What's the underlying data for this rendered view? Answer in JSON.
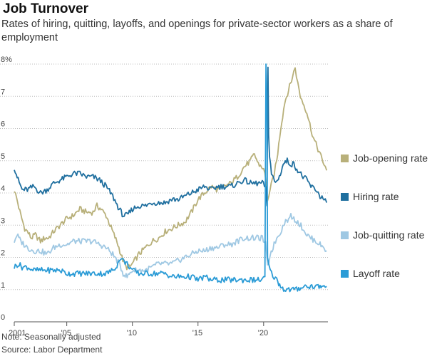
{
  "title": "Job Turnover",
  "subtitle": "Rates of hiring, quitting, layoffs, and openings for private-sector workers as a share of employment",
  "note": "Note: Seasonally adjusted",
  "source": "Source: Labor Department",
  "chart_data": {
    "type": "line",
    "title": "Job Turnover",
    "xlabel": "",
    "ylabel": "",
    "unit": "%",
    "xlim": [
      2001,
      2024.9
    ],
    "ylim": [
      0,
      8
    ],
    "y_ticks": [
      0,
      1,
      2,
      3,
      4,
      5,
      6,
      7,
      8
    ],
    "y_tick_labels": [
      "0",
      "1",
      "2",
      "3",
      "4",
      "5",
      "6",
      "7",
      "8%"
    ],
    "x_ticks": [
      2001,
      2005,
      2010,
      2015,
      2020
    ],
    "x_tick_labels": [
      "2001",
      "'05",
      "'10",
      "'15",
      "'20"
    ],
    "grid": "horizontal dotted",
    "legend_position": "right, next to line ends",
    "series": [
      {
        "name": "Job-opening rate",
        "color": "#b8b07a",
        "points": [
          [
            2001.0,
            4.1
          ],
          [
            2001.2,
            3.8
          ],
          [
            2001.5,
            3.3
          ],
          [
            2001.8,
            2.9
          ],
          [
            2002.0,
            2.8
          ],
          [
            2002.3,
            2.6
          ],
          [
            2002.6,
            2.7
          ],
          [
            2003.0,
            2.5
          ],
          [
            2003.3,
            2.6
          ],
          [
            2003.6,
            2.6
          ],
          [
            2004.0,
            2.8
          ],
          [
            2004.5,
            3.0
          ],
          [
            2005.0,
            3.2
          ],
          [
            2005.5,
            3.3
          ],
          [
            2006.0,
            3.5
          ],
          [
            2006.5,
            3.4
          ],
          [
            2007.0,
            3.4
          ],
          [
            2007.3,
            3.6
          ],
          [
            2007.6,
            3.5
          ],
          [
            2008.0,
            3.3
          ],
          [
            2008.3,
            3.0
          ],
          [
            2008.6,
            2.7
          ],
          [
            2008.9,
            2.4
          ],
          [
            2009.2,
            2.0
          ],
          [
            2009.5,
            1.7
          ],
          [
            2009.8,
            1.7
          ],
          [
            2010.0,
            1.8
          ],
          [
            2010.5,
            2.1
          ],
          [
            2011.0,
            2.3
          ],
          [
            2011.5,
            2.5
          ],
          [
            2012.0,
            2.6
          ],
          [
            2012.5,
            2.8
          ],
          [
            2013.0,
            2.9
          ],
          [
            2013.5,
            3.0
          ],
          [
            2014.0,
            3.1
          ],
          [
            2014.5,
            3.4
          ],
          [
            2015.0,
            3.8
          ],
          [
            2015.5,
            4.0
          ],
          [
            2016.0,
            4.2
          ],
          [
            2016.5,
            4.1
          ],
          [
            2017.0,
            4.2
          ],
          [
            2017.5,
            4.3
          ],
          [
            2018.0,
            4.5
          ],
          [
            2018.5,
            4.8
          ],
          [
            2019.0,
            5.0
          ],
          [
            2019.3,
            5.2
          ],
          [
            2019.6,
            4.9
          ],
          [
            2019.9,
            4.8
          ],
          [
            2020.1,
            4.6
          ],
          [
            2020.3,
            3.8
          ],
          [
            2020.5,
            4.1
          ],
          [
            2020.8,
            4.6
          ],
          [
            2021.0,
            5.0
          ],
          [
            2021.3,
            6.0
          ],
          [
            2021.6,
            6.8
          ],
          [
            2021.9,
            7.2
          ],
          [
            2022.2,
            7.6
          ],
          [
            2022.4,
            7.9
          ],
          [
            2022.6,
            7.4
          ],
          [
            2022.8,
            7.0
          ],
          [
            2023.0,
            6.8
          ],
          [
            2023.3,
            6.5
          ],
          [
            2023.6,
            6.0
          ],
          [
            2023.8,
            5.7
          ],
          [
            2024.0,
            5.5
          ],
          [
            2024.3,
            5.2
          ],
          [
            2024.6,
            4.9
          ],
          [
            2024.8,
            4.7
          ]
        ]
      },
      {
        "name": "Hiring rate",
        "color": "#1f6f9f",
        "points": [
          [
            2001.0,
            4.8
          ],
          [
            2001.3,
            4.4
          ],
          [
            2001.6,
            4.1
          ],
          [
            2002.0,
            4.1
          ],
          [
            2002.5,
            4.2
          ],
          [
            2003.0,
            4.0
          ],
          [
            2003.5,
            4.1
          ],
          [
            2004.0,
            4.3
          ],
          [
            2004.5,
            4.4
          ],
          [
            2005.0,
            4.5
          ],
          [
            2005.5,
            4.6
          ],
          [
            2006.0,
            4.6
          ],
          [
            2006.5,
            4.5
          ],
          [
            2007.0,
            4.5
          ],
          [
            2007.5,
            4.4
          ],
          [
            2008.0,
            4.2
          ],
          [
            2008.5,
            3.9
          ],
          [
            2009.0,
            3.5
          ],
          [
            2009.3,
            3.3
          ],
          [
            2009.6,
            3.3
          ],
          [
            2010.0,
            3.5
          ],
          [
            2010.5,
            3.6
          ],
          [
            2011.0,
            3.6
          ],
          [
            2011.5,
            3.7
          ],
          [
            2012.0,
            3.7
          ],
          [
            2012.5,
            3.7
          ],
          [
            2013.0,
            3.8
          ],
          [
            2013.5,
            3.8
          ],
          [
            2014.0,
            3.9
          ],
          [
            2014.5,
            4.0
          ],
          [
            2015.0,
            4.1
          ],
          [
            2015.5,
            4.2
          ],
          [
            2016.0,
            4.1
          ],
          [
            2016.5,
            4.2
          ],
          [
            2017.0,
            4.2
          ],
          [
            2017.5,
            4.2
          ],
          [
            2018.0,
            4.3
          ],
          [
            2018.5,
            4.4
          ],
          [
            2019.0,
            4.3
          ],
          [
            2019.5,
            4.3
          ],
          [
            2019.9,
            4.3
          ],
          [
            2020.15,
            4.2
          ],
          [
            2020.25,
            3.6
          ],
          [
            2020.33,
            7.9
          ],
          [
            2020.38,
            5.8
          ],
          [
            2020.45,
            5.2
          ],
          [
            2020.6,
            4.6
          ],
          [
            2020.9,
            4.3
          ],
          [
            2021.2,
            4.5
          ],
          [
            2021.5,
            4.9
          ],
          [
            2021.8,
            5.0
          ],
          [
            2022.0,
            4.9
          ],
          [
            2022.3,
            4.9
          ],
          [
            2022.6,
            4.7
          ],
          [
            2023.0,
            4.5
          ],
          [
            2023.3,
            4.4
          ],
          [
            2023.6,
            4.2
          ],
          [
            2024.0,
            4.1
          ],
          [
            2024.3,
            3.9
          ],
          [
            2024.6,
            3.8
          ],
          [
            2024.8,
            3.7
          ]
        ]
      },
      {
        "name": "Job-quitting rate",
        "color": "#9fc8e3",
        "points": [
          [
            2001.0,
            2.5
          ],
          [
            2001.2,
            2.7
          ],
          [
            2001.5,
            2.5
          ],
          [
            2002.0,
            2.3
          ],
          [
            2002.5,
            2.2
          ],
          [
            2003.0,
            2.2
          ],
          [
            2003.5,
            2.1
          ],
          [
            2004.0,
            2.3
          ],
          [
            2004.5,
            2.4
          ],
          [
            2005.0,
            2.4
          ],
          [
            2005.5,
            2.5
          ],
          [
            2006.0,
            2.5
          ],
          [
            2006.5,
            2.5
          ],
          [
            2007.0,
            2.5
          ],
          [
            2007.5,
            2.4
          ],
          [
            2008.0,
            2.3
          ],
          [
            2008.5,
            2.1
          ],
          [
            2009.0,
            1.8
          ],
          [
            2009.3,
            1.5
          ],
          [
            2009.6,
            1.4
          ],
          [
            2010.0,
            1.6
          ],
          [
            2010.5,
            1.6
          ],
          [
            2011.0,
            1.6
          ],
          [
            2011.5,
            1.7
          ],
          [
            2012.0,
            1.8
          ],
          [
            2012.5,
            1.8
          ],
          [
            2013.0,
            1.8
          ],
          [
            2013.5,
            1.9
          ],
          [
            2014.0,
            2.0
          ],
          [
            2014.5,
            2.1
          ],
          [
            2015.0,
            2.2
          ],
          [
            2015.5,
            2.2
          ],
          [
            2016.0,
            2.3
          ],
          [
            2016.5,
            2.3
          ],
          [
            2017.0,
            2.4
          ],
          [
            2017.5,
            2.4
          ],
          [
            2018.0,
            2.5
          ],
          [
            2018.5,
            2.6
          ],
          [
            2019.0,
            2.6
          ],
          [
            2019.5,
            2.6
          ],
          [
            2019.9,
            2.6
          ],
          [
            2020.15,
            2.4
          ],
          [
            2020.3,
            1.7
          ],
          [
            2020.5,
            2.1
          ],
          [
            2020.8,
            2.4
          ],
          [
            2021.0,
            2.6
          ],
          [
            2021.3,
            2.8
          ],
          [
            2021.6,
            3.1
          ],
          [
            2021.9,
            3.2
          ],
          [
            2022.0,
            3.3
          ],
          [
            2022.3,
            3.2
          ],
          [
            2022.6,
            3.1
          ],
          [
            2023.0,
            2.9
          ],
          [
            2023.3,
            2.7
          ],
          [
            2023.6,
            2.6
          ],
          [
            2024.0,
            2.5
          ],
          [
            2024.3,
            2.4
          ],
          [
            2024.6,
            2.3
          ],
          [
            2024.8,
            2.2
          ]
        ]
      },
      {
        "name": "Layoff rate",
        "color": "#2a9bd6",
        "points": [
          [
            2001.0,
            1.7
          ],
          [
            2001.3,
            1.8
          ],
          [
            2001.6,
            1.7
          ],
          [
            2002.0,
            1.7
          ],
          [
            2002.5,
            1.6
          ],
          [
            2003.0,
            1.6
          ],
          [
            2003.5,
            1.6
          ],
          [
            2004.0,
            1.6
          ],
          [
            2004.5,
            1.6
          ],
          [
            2005.0,
            1.5
          ],
          [
            2005.5,
            1.5
          ],
          [
            2006.0,
            1.5
          ],
          [
            2006.5,
            1.5
          ],
          [
            2007.0,
            1.5
          ],
          [
            2007.5,
            1.5
          ],
          [
            2008.0,
            1.5
          ],
          [
            2008.5,
            1.6
          ],
          [
            2008.9,
            1.8
          ],
          [
            2009.1,
            2.0
          ],
          [
            2009.3,
            1.9
          ],
          [
            2009.6,
            1.8
          ],
          [
            2010.0,
            1.6
          ],
          [
            2010.5,
            1.5
          ],
          [
            2011.0,
            1.5
          ],
          [
            2011.5,
            1.5
          ],
          [
            2012.0,
            1.5
          ],
          [
            2012.5,
            1.5
          ],
          [
            2013.0,
            1.4
          ],
          [
            2013.5,
            1.4
          ],
          [
            2014.0,
            1.4
          ],
          [
            2014.5,
            1.4
          ],
          [
            2015.0,
            1.3
          ],
          [
            2015.5,
            1.4
          ],
          [
            2016.0,
            1.3
          ],
          [
            2016.5,
            1.3
          ],
          [
            2017.0,
            1.3
          ],
          [
            2017.5,
            1.3
          ],
          [
            2018.0,
            1.3
          ],
          [
            2018.5,
            1.3
          ],
          [
            2019.0,
            1.3
          ],
          [
            2019.5,
            1.3
          ],
          [
            2019.9,
            1.3
          ],
          [
            2020.1,
            1.4
          ],
          [
            2020.18,
            8.0
          ],
          [
            2020.25,
            7.0
          ],
          [
            2020.3,
            2.0
          ],
          [
            2020.4,
            1.7
          ],
          [
            2020.6,
            1.5
          ],
          [
            2020.8,
            1.4
          ],
          [
            2021.0,
            1.3
          ],
          [
            2021.3,
            1.1
          ],
          [
            2021.6,
            1.0
          ],
          [
            2022.0,
            1.0
          ],
          [
            2022.5,
            1.0
          ],
          [
            2023.0,
            1.1
          ],
          [
            2023.5,
            1.1
          ],
          [
            2024.0,
            1.1
          ],
          [
            2024.3,
            1.1
          ],
          [
            2024.6,
            1.1
          ],
          [
            2024.8,
            1.1
          ]
        ]
      }
    ]
  }
}
